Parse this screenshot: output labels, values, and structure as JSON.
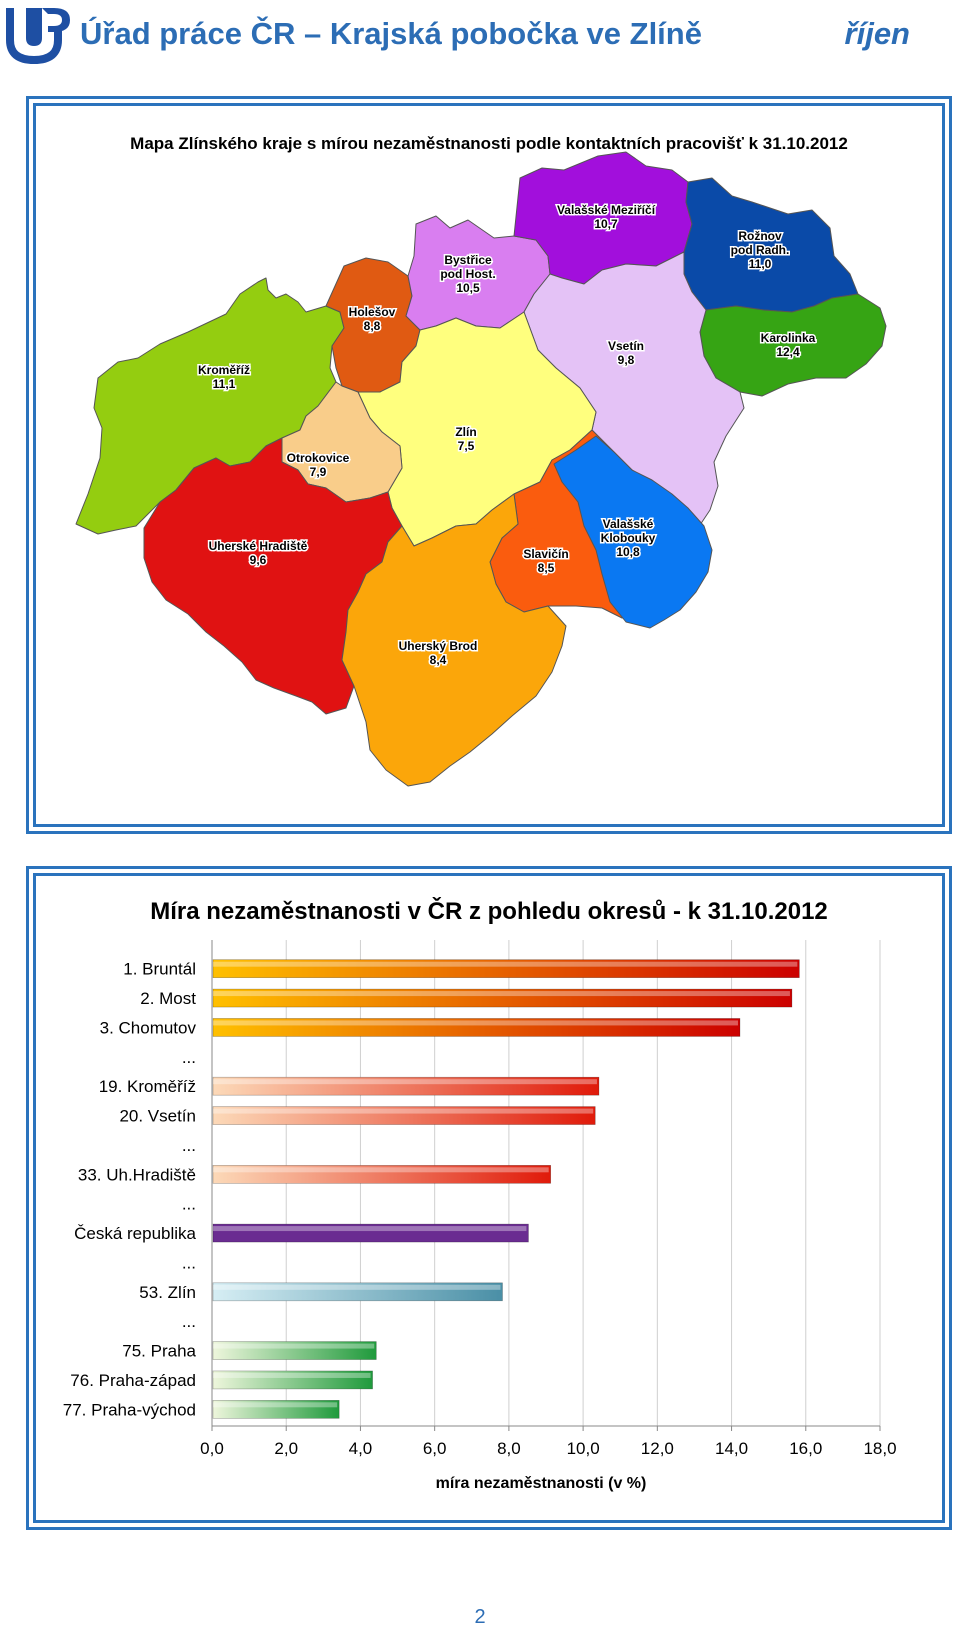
{
  "header": {
    "office_title": "Úřad práce ČR – Krajská pobočka ve Zlíně",
    "month": "říjen"
  },
  "map": {
    "title": "Mapa Zlínského kraje s mírou nezaměstnanosti podle kontaktních pracovišť k 31.10.2012",
    "regions": [
      {
        "id": "kromeriz",
        "lines": [
          "Kroměříž"
        ],
        "value": "11,1",
        "color": "#94cd10"
      },
      {
        "id": "holesov",
        "lines": [
          "Holešov"
        ],
        "value": "8,8",
        "color": "#e05a12"
      },
      {
        "id": "bystrice",
        "lines": [
          "Bystřice",
          "pod Host."
        ],
        "value": "10,5",
        "color": "#d97ef0"
      },
      {
        "id": "valmez",
        "lines": [
          "Valašské Meziříčí"
        ],
        "value": "10,7",
        "color": "#a20fdc"
      },
      {
        "id": "roznov",
        "lines": [
          "Rožnov",
          "pod Radh."
        ],
        "value": "11,0",
        "color": "#0a4aa8"
      },
      {
        "id": "karolinka",
        "lines": [
          "Karolinka"
        ],
        "value": "12,4",
        "color": "#36a414"
      },
      {
        "id": "vsetin",
        "lines": [
          "Vsetín"
        ],
        "value": "9,8",
        "color": "#e4c2f6"
      },
      {
        "id": "zlin",
        "lines": [
          "Zlín"
        ],
        "value": "7,5",
        "color": "#ffff7e"
      },
      {
        "id": "otrokovice",
        "lines": [
          "Otrokovice"
        ],
        "value": "7,9",
        "color": "#f9cd8a"
      },
      {
        "id": "uh",
        "lines": [
          "Uherské Hradiště"
        ],
        "value": "9,6",
        "color": "#e01212"
      },
      {
        "id": "slavicin",
        "lines": [
          "Slavičín"
        ],
        "value": "8,5",
        "color": "#fa5c0e"
      },
      {
        "id": "valklob",
        "lines": [
          "Valašské",
          "Klobouky"
        ],
        "value": "10,8",
        "color": "#0a78f2"
      },
      {
        "id": "ub",
        "lines": [
          "Uherský Brod"
        ],
        "value": "8,4",
        "color": "#fba60a"
      }
    ]
  },
  "chart_data": {
    "type": "bar",
    "orientation": "horizontal",
    "title": "Míra nezaměstnanosti v ČR z pohledu okresů - k 31.10.2012",
    "xlabel": "míra nezaměstnanosti (v %)",
    "xlim": [
      0,
      18
    ],
    "xticks": [
      "0,0",
      "2,0",
      "4,0",
      "6,0",
      "8,0",
      "10,0",
      "12,0",
      "14,0",
      "16,0",
      "18,0"
    ],
    "grid": true,
    "categories": [
      "1. Bruntál",
      "2. Most",
      "3. Chomutov",
      "...",
      "19. Kroměříž",
      "20. Vsetín",
      "...",
      "33. Uh.Hradiště",
      "...",
      "Česká republika",
      "...",
      "53. Zlín",
      "...",
      "75. Praha",
      "76. Praha-západ",
      "77. Praha-východ"
    ],
    "values": [
      15.8,
      15.6,
      14.2,
      null,
      10.4,
      10.3,
      null,
      9.1,
      null,
      8.5,
      null,
      7.8,
      null,
      4.4,
      4.3,
      3.4
    ],
    "bar_colors": [
      "#cc0000",
      "#cc0000",
      "#cc0000",
      null,
      "#e01a0a",
      "#e01a0a",
      null,
      "#e01a0a",
      null,
      "#6a2c91",
      null,
      "#4a8fa6",
      null,
      "#1f9a3c",
      "#1f9a3c",
      "#1f9a3c"
    ],
    "bar_start_colors": [
      "#ffc000",
      "#ffc000",
      "#ffc000",
      null,
      "#fcd9b8",
      "#fcd9b8",
      null,
      "#fcd9b8",
      null,
      "#6a2c91",
      null,
      "#d6eef4",
      null,
      "#eef6dc",
      "#eef6dc",
      "#eef6dc"
    ]
  },
  "footer": {
    "page_number": "2"
  }
}
